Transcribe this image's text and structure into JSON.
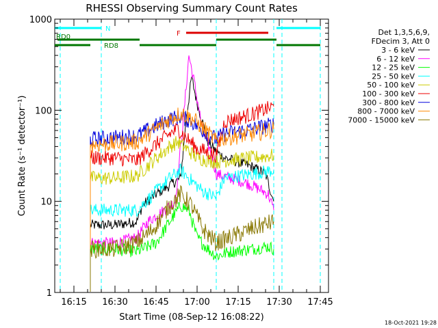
{
  "chart_data": {
    "type": "line",
    "title": "RHESSI Observing Summary Count Rates",
    "xlabel": "Start Time (08-Sep-12 16:08:22)",
    "ylabel": "Count Rate (s⁻¹ detector⁻¹)",
    "yscale": "log",
    "ylim": [
      1,
      1000
    ],
    "xlim": [
      "16:08",
      "17:48"
    ],
    "x_ticks": [
      "16:15",
      "16:30",
      "16:45",
      "17:00",
      "17:15",
      "17:30",
      "17:45"
    ],
    "y_ticks": [
      "1",
      "10",
      "100",
      "1000"
    ],
    "legend_header": [
      "Det 1,3,5,6,9,",
      "FDecim 3, Att 0"
    ],
    "legend_position": "right",
    "timestamp": "18-Oct-2021 19:28",
    "data_gaps": [
      [
        "16:08",
        "16:21"
      ],
      [
        "17:29",
        "17:32"
      ]
    ],
    "vertical_markers": [
      {
        "time": "16:10",
        "color": "#00ffff"
      },
      {
        "time": "16:25",
        "color": "#00ffff"
      },
      {
        "time": "17:07",
        "color": "#00ffff"
      },
      {
        "time": "17:28",
        "color": "#00ffff"
      },
      {
        "time": "17:31",
        "color": "#00ffff"
      },
      {
        "time": "17:45",
        "color": "#00ffff"
      }
    ],
    "flags": [
      {
        "label": "N",
        "color": "#00ffff",
        "y_level": 1,
        "segments": [
          [
            "16:08",
            "16:25"
          ],
          [
            "17:29",
            "17:45"
          ]
        ]
      },
      {
        "label": "F",
        "color": "#dd0000",
        "y_level": 2,
        "segments": [
          [
            "16:56",
            "17:26"
          ]
        ]
      },
      {
        "label": "RD0",
        "color": "#007700",
        "y_level": 3,
        "segments": [
          [
            "16:09",
            "16:39"
          ],
          [
            "17:07",
            "17:29"
          ]
        ]
      },
      {
        "label": "RD8",
        "color": "#007700",
        "y_level": 4,
        "segments": [
          [
            "16:08",
            "16:21"
          ],
          [
            "16:39",
            "17:07"
          ],
          [
            "17:29",
            "17:45"
          ]
        ]
      }
    ],
    "series": [
      {
        "name": "3 - 6 keV",
        "color": "#000000",
        "points": [
          [
            "16:21",
            5.5
          ],
          [
            "16:30",
            5.5
          ],
          [
            "16:38",
            6
          ],
          [
            "16:40",
            9
          ],
          [
            "16:45",
            12
          ],
          [
            "16:50",
            15
          ],
          [
            "16:54",
            18
          ],
          [
            "16:56",
            80
          ],
          [
            "16:58",
            230
          ],
          [
            "17:00",
            120
          ],
          [
            "17:04",
            45
          ],
          [
            "17:07",
            35
          ],
          [
            "17:10",
            30
          ],
          [
            "17:15",
            27
          ],
          [
            "17:20",
            24
          ],
          [
            "17:25",
            20
          ],
          [
            "17:28",
            10
          ]
        ]
      },
      {
        "name": "6 - 12 keV",
        "color": "#ff00ff",
        "points": [
          [
            "16:21",
            3.5
          ],
          [
            "16:30",
            3.5
          ],
          [
            "16:38",
            4
          ],
          [
            "16:42",
            6
          ],
          [
            "16:48",
            8
          ],
          [
            "16:52",
            10
          ],
          [
            "16:55",
            80
          ],
          [
            "16:57",
            400
          ],
          [
            "16:59",
            200
          ],
          [
            "17:02",
            60
          ],
          [
            "17:05",
            35
          ],
          [
            "17:07",
            20
          ],
          [
            "17:12",
            18
          ],
          [
            "17:18",
            16
          ],
          [
            "17:22",
            14
          ],
          [
            "17:26",
            12
          ],
          [
            "17:28",
            8
          ]
        ]
      },
      {
        "name": "12 - 25 keV",
        "color": "#00ff00",
        "points": [
          [
            "16:21",
            3
          ],
          [
            "16:30",
            3
          ],
          [
            "16:38",
            2.8
          ],
          [
            "16:45",
            3.5
          ],
          [
            "16:50",
            6
          ],
          [
            "16:54",
            9
          ],
          [
            "16:57",
            8
          ],
          [
            "17:00",
            4
          ],
          [
            "17:04",
            3
          ],
          [
            "17:07",
            2.5
          ],
          [
            "17:12",
            2.8
          ],
          [
            "17:20",
            3
          ],
          [
            "17:26",
            3.2
          ],
          [
            "17:28",
            3
          ]
        ]
      },
      {
        "name": "25 - 50 keV",
        "color": "#00ffff",
        "points": [
          [
            "16:21",
            8
          ],
          [
            "16:30",
            8
          ],
          [
            "16:38",
            8
          ],
          [
            "16:44",
            12
          ],
          [
            "16:50",
            18
          ],
          [
            "16:54",
            22
          ],
          [
            "16:57",
            18
          ],
          [
            "17:02",
            13
          ],
          [
            "17:07",
            11
          ],
          [
            "17:10",
            18
          ],
          [
            "17:20",
            20
          ],
          [
            "17:28",
            22
          ]
        ]
      },
      {
        "name": "50 - 100 keV",
        "color": "#cccc00",
        "points": [
          [
            "16:21",
            18
          ],
          [
            "16:30",
            18
          ],
          [
            "16:38",
            19
          ],
          [
            "16:44",
            28
          ],
          [
            "16:50",
            40
          ],
          [
            "16:53",
            45
          ],
          [
            "16:56",
            38
          ],
          [
            "17:00",
            30
          ],
          [
            "17:07",
            27
          ],
          [
            "17:10",
            28
          ],
          [
            "17:20",
            30
          ],
          [
            "17:28",
            32
          ]
        ]
      },
      {
        "name": "100 - 300 keV",
        "color": "#ee0000",
        "points": [
          [
            "16:21",
            30
          ],
          [
            "16:30",
            30
          ],
          [
            "16:38",
            28
          ],
          [
            "16:44",
            40
          ],
          [
            "16:50",
            55
          ],
          [
            "16:53",
            63
          ],
          [
            "16:56",
            50
          ],
          [
            "17:00",
            38
          ],
          [
            "17:07",
            32
          ],
          [
            "17:10",
            75
          ],
          [
            "17:20",
            90
          ],
          [
            "17:28",
            110
          ]
        ]
      },
      {
        "name": "300 - 800 keV",
        "color": "#0000dd",
        "points": [
          [
            "16:21",
            48
          ],
          [
            "16:30",
            50
          ],
          [
            "16:38",
            52
          ],
          [
            "16:44",
            65
          ],
          [
            "16:50",
            80
          ],
          [
            "16:54",
            85
          ],
          [
            "16:58",
            75
          ],
          [
            "17:02",
            60
          ],
          [
            "17:07",
            48
          ],
          [
            "17:10",
            55
          ],
          [
            "17:20",
            62
          ],
          [
            "17:28",
            70
          ]
        ]
      },
      {
        "name": "800 - 7000 keV",
        "color": "#ff8800",
        "points": [
          [
            "16:21",
            42
          ],
          [
            "16:30",
            43
          ],
          [
            "16:38",
            45
          ],
          [
            "16:44",
            60
          ],
          [
            "16:50",
            80
          ],
          [
            "16:54",
            93
          ],
          [
            "16:58",
            82
          ],
          [
            "17:02",
            65
          ],
          [
            "17:07",
            45
          ],
          [
            "17:10",
            50
          ],
          [
            "17:20",
            55
          ],
          [
            "17:28",
            62
          ]
        ]
      },
      {
        "name": "7000 - 15000 keV",
        "color": "#887700",
        "points": [
          [
            "16:21",
            3
          ],
          [
            "16:30",
            3
          ],
          [
            "16:38",
            3.5
          ],
          [
            "16:44",
            5
          ],
          [
            "16:50",
            9
          ],
          [
            "16:54",
            12
          ],
          [
            "16:58",
            9
          ],
          [
            "17:02",
            5
          ],
          [
            "17:07",
            3.5
          ],
          [
            "17:12",
            4
          ],
          [
            "17:20",
            5
          ],
          [
            "17:28",
            6
          ]
        ]
      }
    ]
  }
}
